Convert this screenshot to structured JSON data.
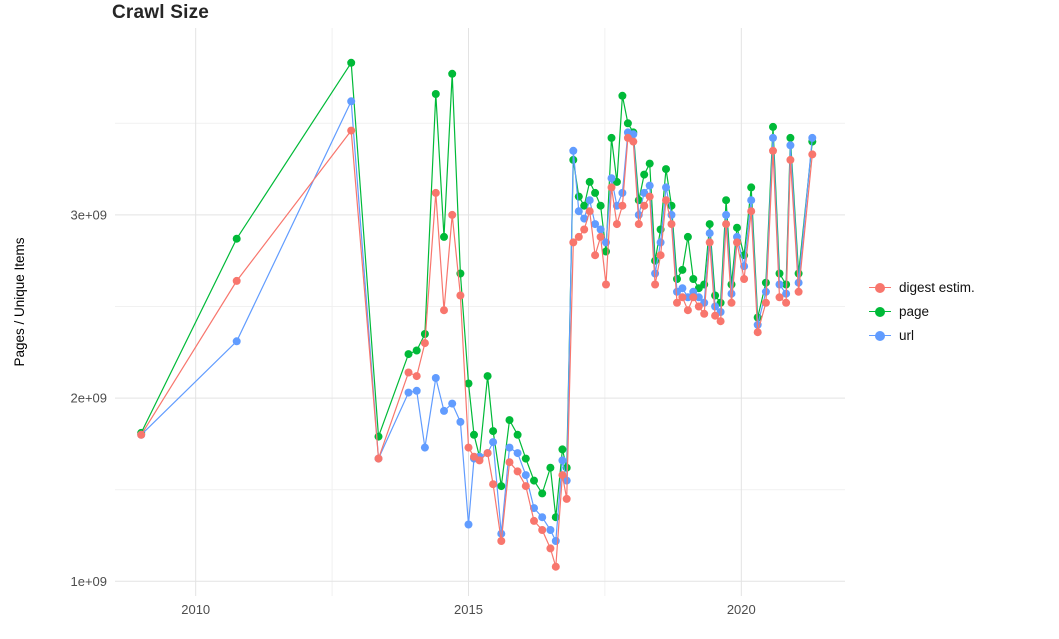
{
  "chart_data": {
    "type": "line",
    "title": "Crawl Size",
    "xlabel": "",
    "ylabel": "Pages / Unique Items",
    "x_unit": "year (decimal)",
    "y_unit": "count, value multiplied by 1e+09",
    "xlim": [
      2008.52,
      2021.9
    ],
    "ylim": [
      0.92,
      4.02
    ],
    "grid": true,
    "legend_position": "right",
    "x_ticks": {
      "values": [
        2010,
        2015,
        2020
      ],
      "labels": [
        "2010",
        "2015",
        "2020"
      ]
    },
    "y_ticks": {
      "values": [
        1,
        2,
        3
      ],
      "labels": [
        "1e+09",
        "2e+09",
        "3e+09"
      ]
    },
    "x_minor_gridlines": [
      2012.5,
      2017.5
    ],
    "y_minor_gridlines": [
      1.5,
      2.5,
      3.5
    ],
    "x": [
      2009.0,
      2010.75,
      2012.85,
      2013.35,
      2013.9,
      2014.05,
      2014.2,
      2014.4,
      2014.55,
      2014.7,
      2014.85,
      2015.0,
      2015.1,
      2015.2,
      2015.35,
      2015.45,
      2015.6,
      2015.75,
      2015.9,
      2016.05,
      2016.2,
      2016.35,
      2016.5,
      2016.6,
      2016.72,
      2016.8,
      2016.92,
      2017.02,
      2017.12,
      2017.22,
      2017.32,
      2017.42,
      2017.52,
      2017.62,
      2017.72,
      2017.82,
      2017.92,
      2018.02,
      2018.12,
      2018.22,
      2018.32,
      2018.42,
      2018.52,
      2018.62,
      2018.72,
      2018.82,
      2018.92,
      2019.02,
      2019.12,
      2019.22,
      2019.32,
      2019.42,
      2019.52,
      2019.62,
      2019.72,
      2019.82,
      2019.92,
      2020.05,
      2020.18,
      2020.3,
      2020.45,
      2020.58,
      2020.7,
      2020.82,
      2020.9,
      2021.05,
      2021.3
    ],
    "series": [
      {
        "name": "digest estim.",
        "color": "#F8766D",
        "values": [
          1.8,
          2.64,
          3.46,
          1.67,
          2.14,
          2.12,
          2.3,
          3.12,
          2.48,
          3.0,
          2.56,
          1.73,
          1.68,
          1.66,
          1.7,
          1.53,
          1.22,
          1.65,
          1.6,
          1.52,
          1.33,
          1.28,
          1.18,
          1.08,
          1.58,
          1.45,
          2.85,
          2.88,
          2.92,
          3.02,
          2.78,
          2.88,
          2.62,
          3.15,
          2.95,
          3.05,
          3.42,
          3.4,
          2.95,
          3.05,
          3.1,
          2.62,
          2.78,
          3.08,
          2.95,
          2.52,
          2.55,
          2.48,
          2.55,
          2.5,
          2.46,
          2.85,
          2.45,
          2.42,
          2.95,
          2.52,
          2.85,
          2.65,
          3.02,
          2.36,
          2.52,
          3.35,
          2.55,
          2.52,
          3.3,
          2.58,
          3.33
        ]
      },
      {
        "name": "page",
        "color": "#00BA38",
        "values": [
          1.81,
          2.87,
          3.83,
          1.79,
          2.24,
          2.26,
          2.35,
          3.66,
          2.88,
          3.77,
          2.68,
          2.08,
          1.8,
          1.68,
          2.12,
          1.82,
          1.52,
          1.88,
          1.8,
          1.67,
          1.55,
          1.48,
          1.62,
          1.35,
          1.72,
          1.62,
          3.3,
          3.1,
          3.05,
          3.18,
          3.12,
          3.05,
          2.8,
          3.42,
          3.18,
          3.65,
          3.5,
          3.45,
          3.08,
          3.22,
          3.28,
          2.75,
          2.92,
          3.25,
          3.05,
          2.65,
          2.7,
          2.88,
          2.65,
          2.6,
          2.62,
          2.95,
          2.56,
          2.52,
          3.08,
          2.62,
          2.93,
          2.78,
          3.15,
          2.44,
          2.63,
          3.48,
          2.68,
          2.62,
          3.42,
          2.68,
          3.4
        ]
      },
      {
        "name": "url",
        "color": "#619CFF",
        "values": [
          1.8,
          2.31,
          3.62,
          1.67,
          2.03,
          2.04,
          1.73,
          2.11,
          1.93,
          1.97,
          1.87,
          1.31,
          1.67,
          1.68,
          1.7,
          1.76,
          1.26,
          1.73,
          1.7,
          1.58,
          1.4,
          1.35,
          1.28,
          1.22,
          1.66,
          1.55,
          3.35,
          3.02,
          2.98,
          3.08,
          2.95,
          2.92,
          2.85,
          3.2,
          3.05,
          3.12,
          3.45,
          3.44,
          3.0,
          3.12,
          3.16,
          2.68,
          2.85,
          3.15,
          3.0,
          2.58,
          2.6,
          2.55,
          2.58,
          2.55,
          2.52,
          2.9,
          2.5,
          2.47,
          3.0,
          2.57,
          2.88,
          2.72,
          3.08,
          2.4,
          2.58,
          3.42,
          2.62,
          2.57,
          3.38,
          2.63,
          3.42
        ]
      }
    ]
  },
  "colors": {
    "background": "#ffffff",
    "grid_major": "#e3e3e3",
    "grid_minor": "#f1f1f1",
    "tick_text": "#4d4d4d",
    "title_text": "#262626"
  }
}
